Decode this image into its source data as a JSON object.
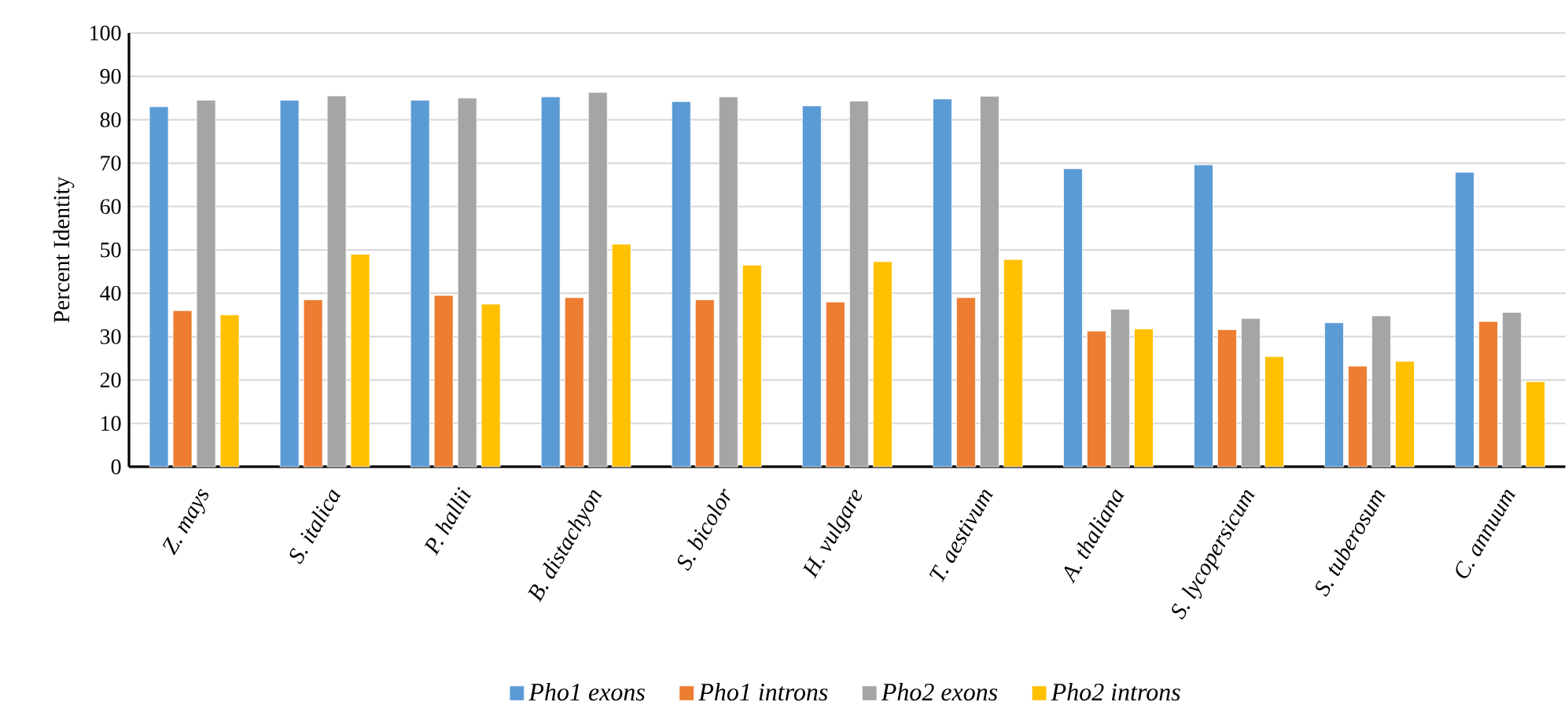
{
  "chart_data": {
    "type": "bar",
    "ylabel": "Percent Identity",
    "categories": [
      "Z. mays",
      "S. italica",
      "P. hallii",
      "B. distachyon",
      "S. bicolor",
      "H. vulgare",
      "T. aestivum",
      "A. thaliana",
      "S. lycopersicum",
      "S. tuberosum",
      "C. annuum"
    ],
    "series": [
      {
        "name": "Pho1 exons",
        "color": "#5b9bd5",
        "values": [
          83,
          84.5,
          84.5,
          85.3,
          84.2,
          83.2,
          84.8,
          68.7,
          69.6,
          33.2,
          67.9
        ]
      },
      {
        "name": "Pho1 introns",
        "color": "#ed7d31",
        "values": [
          36,
          38.5,
          39.5,
          39,
          38.5,
          38,
          39,
          31.3,
          31.6,
          23.2,
          33.5
        ]
      },
      {
        "name": "Pho2 exons",
        "color": "#a5a5a5",
        "values": [
          84.5,
          85.5,
          85,
          86.3,
          85.3,
          84.3,
          85.4,
          36.3,
          34.2,
          34.8,
          35.6
        ]
      },
      {
        "name": "Pho2 introns",
        "color": "#ffc000",
        "values": [
          35,
          49,
          37.5,
          51.3,
          46.5,
          47.3,
          47.8,
          31.8,
          25.4,
          24.3,
          19.6
        ]
      }
    ],
    "ylim": [
      0,
      100
    ],
    "yticks": [
      0,
      10,
      20,
      30,
      40,
      50,
      60,
      70,
      80,
      90,
      100
    ],
    "grid": "y",
    "legend": "bottom"
  }
}
